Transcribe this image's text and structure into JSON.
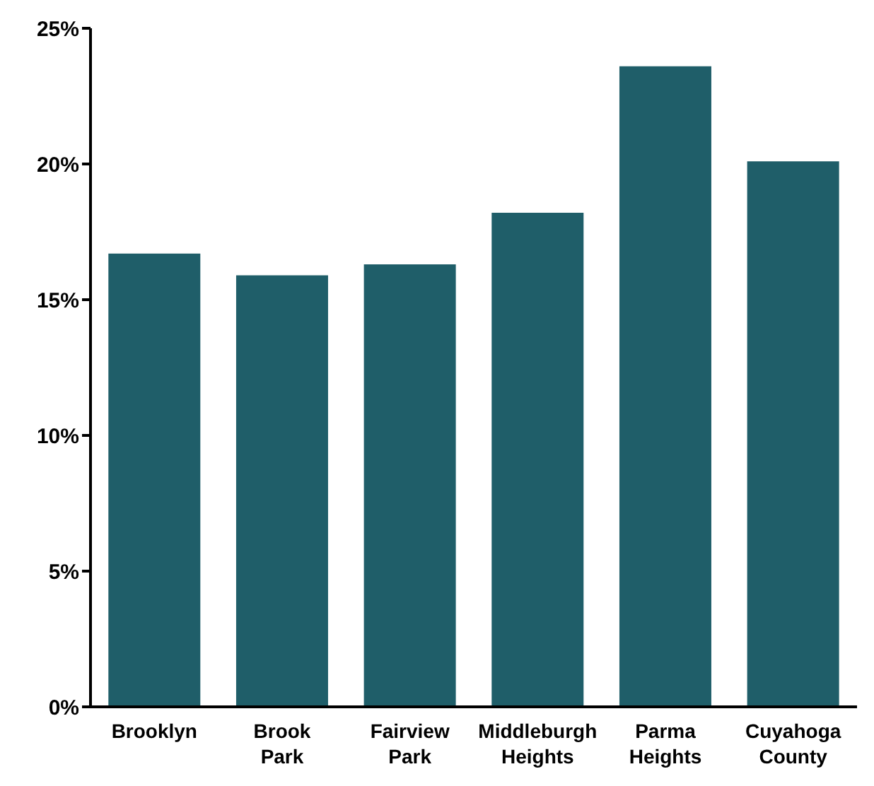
{
  "chart_data": {
    "type": "bar",
    "categories": [
      "Brooklyn",
      "Brook Park",
      "Fairview Park",
      "Middleburgh Heights",
      "Parma Heights",
      "Cuyahoga County"
    ],
    "values": [
      16.7,
      15.9,
      16.3,
      18.2,
      23.6,
      20.1
    ],
    "color": "#1f5e69",
    "ylim": [
      0,
      25
    ],
    "yticks": [
      {
        "value": 0,
        "label": "0%"
      },
      {
        "value": 5,
        "label": "5%"
      },
      {
        "value": 10,
        "label": "10%"
      },
      {
        "value": 15,
        "label": "15%"
      },
      {
        "value": 20,
        "label": "20%"
      },
      {
        "value": 25,
        "label": "25%"
      }
    ],
    "grid": false
  }
}
